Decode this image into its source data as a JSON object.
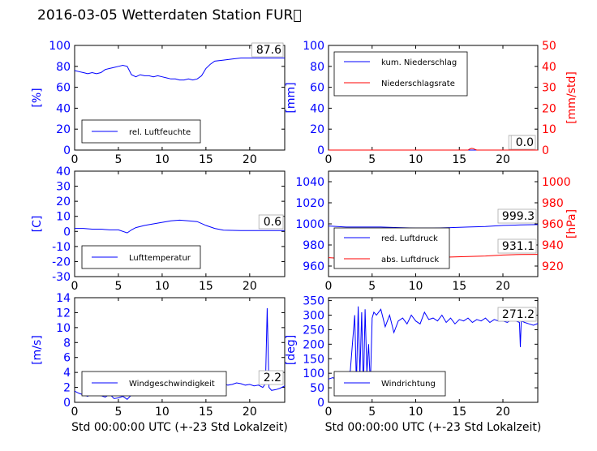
{
  "figure": {
    "title": "2016-03-05 Wetterdaten Station FUR\u0000",
    "colors": {
      "primary": "#0000ff",
      "secondary": "#ff0000",
      "wind_light": "#7f7fff",
      "text": "#000000"
    }
  },
  "chart_data": [
    {
      "type": "line",
      "title": "",
      "xlabel": "",
      "ylabel": "[%]",
      "xlim": [
        0,
        24
      ],
      "ylim": [
        0,
        100
      ],
      "xticks": [
        0,
        5,
        10,
        15,
        20
      ],
      "yticks": [
        0,
        20,
        40,
        60,
        80,
        100
      ],
      "grid": false,
      "legend": "lower-left",
      "annotation": "87.6",
      "series": [
        {
          "name": "rel. Luftfeuchte",
          "color": "#0000ff",
          "axis": "left",
          "x": [
            0,
            0.5,
            1,
            1.5,
            2,
            2.5,
            3,
            3.5,
            4,
            4.5,
            5,
            5.5,
            6,
            6.5,
            7,
            7.5,
            8,
            8.5,
            9,
            9.5,
            10,
            10.5,
            11,
            11.5,
            12,
            12.5,
            13,
            13.5,
            14,
            14.5,
            15,
            15.5,
            16,
            17,
            18,
            19,
            20,
            21,
            22,
            23,
            24
          ],
          "y": [
            76,
            75,
            74,
            73,
            74,
            73,
            74,
            77,
            78,
            79,
            80,
            81,
            80,
            72,
            70,
            72,
            71,
            71,
            70,
            71,
            70,
            69,
            68,
            68,
            67,
            67,
            68,
            67,
            68,
            71,
            78,
            82,
            85,
            86,
            87,
            88,
            88,
            88,
            88,
            88,
            88
          ]
        }
      ]
    },
    {
      "type": "line",
      "title": "",
      "xlabel": "",
      "ylabel": "[mm]",
      "y2label": "[mm/std]",
      "xlim": [
        0,
        24
      ],
      "ylim": [
        0,
        100
      ],
      "y2lim": [
        0,
        50
      ],
      "xticks": [
        0,
        5,
        10,
        15,
        20
      ],
      "yticks": [
        0,
        20,
        40,
        60,
        80,
        100
      ],
      "y2ticks": [
        0,
        10,
        20,
        30,
        40,
        50
      ],
      "grid": false,
      "legend": "upper-left",
      "annotation": "0.0",
      "annotation2": "0.0",
      "series": [
        {
          "name": "kum. Niederschlag",
          "color": "#0000ff",
          "axis": "left",
          "x": [
            0,
            24
          ],
          "y": [
            0,
            0
          ]
        },
        {
          "name": "Niederschlagsrate",
          "color": "#ff0000",
          "axis": "right",
          "x": [
            0,
            16,
            16.2,
            16.4,
            16.6,
            16.8,
            17,
            24
          ],
          "y": [
            0,
            0,
            0.5,
            0.8,
            0.7,
            0.3,
            0,
            0
          ]
        }
      ]
    },
    {
      "type": "line",
      "title": "",
      "xlabel": "",
      "ylabel": "[C]",
      "xlim": [
        0,
        24
      ],
      "ylim": [
        -30,
        40
      ],
      "xticks": [
        0,
        5,
        10,
        15,
        20
      ],
      "yticks": [
        -30,
        -20,
        -10,
        0,
        10,
        20,
        30,
        40
      ],
      "grid": false,
      "legend": "lower-left",
      "annotation": "0.6",
      "series": [
        {
          "name": "Lufttemperatur",
          "color": "#0000ff",
          "axis": "left",
          "x": [
            0,
            1,
            2,
            3,
            4,
            5,
            6,
            6.5,
            7,
            8,
            9,
            10,
            11,
            12,
            13,
            14,
            15,
            16,
            17,
            18,
            19,
            20,
            21,
            22,
            23,
            24
          ],
          "y": [
            2,
            2,
            1.5,
            1.5,
            1,
            1,
            -1,
            1,
            2.5,
            4,
            5,
            6,
            7,
            7.5,
            7,
            6.5,
            4,
            2,
            0.8,
            0.7,
            0.6,
            0.6,
            0.6,
            0.6,
            0.6,
            0.6
          ]
        }
      ]
    },
    {
      "type": "line",
      "title": "",
      "xlabel": "",
      "ylabel": "",
      "y2label": "[hPa]",
      "xlim": [
        0,
        24
      ],
      "ylim": [
        950,
        1050
      ],
      "y2lim": [
        910,
        1010
      ],
      "xticks": [
        0,
        5,
        10,
        15,
        20
      ],
      "yticks": [
        960,
        980,
        1000,
        1020,
        1040
      ],
      "y2ticks": [
        920,
        940,
        960,
        980,
        1000
      ],
      "grid": false,
      "legend": "lower-left",
      "annotation": "999.3",
      "annotation2": "931.1",
      "series": [
        {
          "name": "red. Luftdruck",
          "color": "#0000ff",
          "axis": "left",
          "x": [
            0,
            2,
            4,
            6,
            8,
            10,
            12,
            14,
            16,
            18,
            20,
            22,
            24
          ],
          "y": [
            998,
            997,
            997,
            997,
            996.5,
            996,
            996,
            996.5,
            997,
            997.5,
            998.5,
            999,
            999.3
          ]
        },
        {
          "name": "abs. Luftdruck",
          "color": "#ff0000",
          "axis": "right",
          "x": [
            0,
            2,
            4,
            6,
            8,
            10,
            12,
            14,
            16,
            18,
            20,
            22,
            24
          ],
          "y": [
            928,
            927,
            926.5,
            926.5,
            927,
            927.5,
            928,
            928.5,
            929,
            929.5,
            930.5,
            931,
            931.1
          ]
        }
      ]
    },
    {
      "type": "line",
      "title": "",
      "xlabel": "Std 00:00:00 UTC (+-23 Std Lokalzeit)",
      "ylabel": "[m/s]",
      "xlim": [
        0,
        24
      ],
      "ylim": [
        0,
        14
      ],
      "xticks": [
        0,
        5,
        10,
        15,
        20
      ],
      "yticks": [
        0,
        2,
        4,
        6,
        8,
        10,
        12,
        14
      ],
      "grid": false,
      "legend": "lower-left",
      "annotation": "2.2",
      "series": [
        {
          "name": "Windgeschwindigkeit",
          "color": "#0000ff",
          "axis": "left",
          "x": [
            0,
            0.5,
            1,
            1.5,
            2,
            2.5,
            3,
            3.5,
            4,
            4.5,
            5,
            5.5,
            6,
            6.5,
            7,
            7.5,
            8,
            8.5,
            9,
            9.5,
            10,
            10.5,
            11,
            11.5,
            12,
            12.5,
            13,
            13.5,
            14,
            14.5,
            15,
            15.5,
            16,
            16.5,
            17,
            17.5,
            18,
            18.5,
            19,
            19.5,
            20,
            20.5,
            21,
            21.5,
            21.8,
            22,
            22.2,
            22.5,
            23,
            23.5,
            24
          ],
          "y": [
            1.5,
            1.2,
            1.0,
            0.8,
            1.4,
            1.0,
            0.9,
            0.7,
            1.1,
            0.5,
            0.6,
            0.8,
            0.4,
            1.0,
            1.2,
            1.4,
            1.5,
            1.8,
            1.9,
            2.1,
            2.0,
            2.2,
            2.3,
            2.4,
            2.2,
            2.5,
            2.6,
            2.4,
            2.7,
            2.6,
            2.8,
            2.5,
            2.6,
            2.4,
            2.5,
            2.3,
            2.4,
            2.6,
            2.5,
            2.3,
            2.4,
            2.2,
            2.3,
            2.0,
            2.5,
            12.6,
            2.0,
            1.6,
            1.7,
            1.9,
            2.2
          ]
        }
      ]
    },
    {
      "type": "line",
      "title": "",
      "xlabel": "Std 00:00:00 UTC (+-23 Std Lokalzeit)",
      "ylabel": "[deg]",
      "xlim": [
        0,
        24
      ],
      "ylim": [
        0,
        360
      ],
      "xticks": [
        0,
        5,
        10,
        15,
        20
      ],
      "yticks": [
        0,
        50,
        100,
        150,
        200,
        250,
        300,
        350
      ],
      "grid": false,
      "legend": "lower-left",
      "annotation": "271.2",
      "series": [
        {
          "name": "Windrichtung",
          "color": "#0000ff",
          "axis": "left",
          "x": [
            0,
            0.5,
            1,
            1.5,
            2,
            2.5,
            3,
            3.2,
            3.4,
            3.6,
            3.8,
            4,
            4.2,
            4.4,
            4.6,
            4.8,
            5,
            5.2,
            5.5,
            6,
            6.5,
            7,
            7.5,
            8,
            8.5,
            9,
            9.5,
            10,
            10.5,
            11,
            11.5,
            12,
            12.5,
            13,
            13.5,
            14,
            14.5,
            15,
            15.5,
            16,
            16.5,
            17,
            17.5,
            18,
            18.5,
            19,
            19.5,
            20,
            20.5,
            21,
            21.5,
            21.9,
            22,
            22.1,
            22.5,
            23,
            23.5,
            24
          ],
          "y": [
            80,
            85,
            75,
            90,
            70,
            110,
            300,
            60,
            330,
            90,
            310,
            40,
            320,
            100,
            200,
            60,
            290,
            310,
            300,
            320,
            260,
            300,
            240,
            280,
            290,
            270,
            300,
            280,
            270,
            310,
            285,
            290,
            280,
            300,
            275,
            290,
            270,
            285,
            280,
            290,
            275,
            285,
            280,
            290,
            275,
            285,
            280,
            280,
            275,
            285,
            280,
            275,
            190,
            280,
            275,
            270,
            265,
            271
          ]
        }
      ]
    }
  ]
}
